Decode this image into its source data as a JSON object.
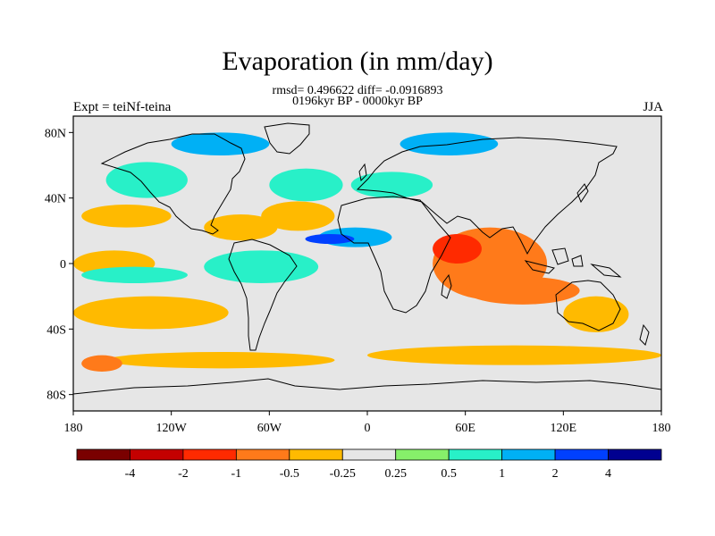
{
  "title": "Evaporation (in mm/day)",
  "stats": "rmsd= 0.496622 diff= -0.0916893",
  "period": "0196kyr BP - 0000kyr BP",
  "left_label": "Expt = teiNf-teina",
  "right_label": "JJA",
  "lon_ticks": [
    {
      "value": -180,
      "label": "180"
    },
    {
      "value": -120,
      "label": "120W"
    },
    {
      "value": -60,
      "label": "60W"
    },
    {
      "value": 0,
      "label": "0"
    },
    {
      "value": 60,
      "label": "60E"
    },
    {
      "value": 120,
      "label": "120E"
    },
    {
      "value": 180,
      "label": "180"
    }
  ],
  "lat_ticks": [
    {
      "value": 80,
      "label": "80N"
    },
    {
      "value": 40,
      "label": "40N"
    },
    {
      "value": 0,
      "label": "0"
    },
    {
      "value": -40,
      "label": "40S"
    },
    {
      "value": -80,
      "label": "80S"
    }
  ],
  "colorbar": {
    "colors": [
      "#7a0000",
      "#c40000",
      "#ff2a00",
      "#ff7a1a",
      "#ffba00",
      "#e6e6e6",
      "#86f06a",
      "#28f0c8",
      "#00b0f5",
      "#0040ff",
      "#000090"
    ],
    "labels": [
      "-4",
      "-2",
      "-1",
      "-0.5",
      "-0.25",
      "0.25",
      "0.5",
      "1",
      "2",
      "4"
    ]
  },
  "chart_data": {
    "type": "heatmap",
    "title": "Evaporation (in mm/day)",
    "variable": "Evaporation",
    "units": "mm/day",
    "season": "JJA",
    "experiment": "teiNf-teina",
    "rmsd": 0.496622,
    "diff": -0.0916893,
    "lon_range": [
      -180,
      180
    ],
    "lat_range": [
      -90,
      90
    ],
    "contour_levels": [
      -4,
      -2,
      -1,
      -0.5,
      -0.25,
      0.25,
      0.5,
      1,
      2,
      4
    ],
    "regions": [
      {
        "lon": [
          -175,
          -120
        ],
        "lat": [
          22,
          36
        ],
        "level": -0.5
      },
      {
        "lon": [
          -100,
          -55
        ],
        "lat": [
          14,
          30
        ],
        "level": -0.5
      },
      {
        "lon": [
          -65,
          -20
        ],
        "lat": [
          20,
          38
        ],
        "level": -0.5
      },
      {
        "lon": [
          -60,
          -15
        ],
        "lat": [
          38,
          58
        ],
        "level": 0.5
      },
      {
        "lon": [
          -10,
          40
        ],
        "lat": [
          40,
          56
        ],
        "level": 0.5
      },
      {
        "lon": [
          -160,
          -110
        ],
        "lat": [
          40,
          62
        ],
        "level": 0.5
      },
      {
        "lon": [
          -120,
          -60
        ],
        "lat": [
          66,
          80
        ],
        "level": 1
      },
      {
        "lon": [
          20,
          80
        ],
        "lat": [
          66,
          80
        ],
        "level": 1
      },
      {
        "lon": [
          -30,
          15
        ],
        "lat": [
          10,
          22
        ],
        "level": 1
      },
      {
        "lon": [
          -38,
          -8
        ],
        "lat": [
          12,
          18
        ],
        "level": 2
      },
      {
        "lon": [
          40,
          110
        ],
        "lat": [
          -22,
          22
        ],
        "level": -1
      },
      {
        "lon": [
          40,
          70
        ],
        "lat": [
          0,
          18
        ],
        "level": -2
      },
      {
        "lon": [
          60,
          130
        ],
        "lat": [
          -25,
          -8
        ],
        "level": -1
      },
      {
        "lon": [
          120,
          160
        ],
        "lat": [
          -42,
          -20
        ],
        "level": -0.5
      },
      {
        "lon": [
          -180,
          -130
        ],
        "lat": [
          -8,
          8
        ],
        "level": -0.5
      },
      {
        "lon": [
          -180,
          -85
        ],
        "lat": [
          -40,
          -20
        ],
        "level": -0.5
      },
      {
        "lon": [
          -175,
          -110
        ],
        "lat": [
          -12,
          -2
        ],
        "level": 0.5
      },
      {
        "lon": [
          -100,
          -30
        ],
        "lat": [
          -12,
          8
        ],
        "level": 0.5
      },
      {
        "lon": [
          -160,
          -20
        ],
        "lat": [
          -64,
          -54
        ],
        "level": -0.5
      },
      {
        "lon": [
          0,
          180
        ],
        "lat": [
          -62,
          -50
        ],
        "level": -0.5
      },
      {
        "lon": [
          -175,
          -150
        ],
        "lat": [
          -66,
          -56
        ],
        "level": -1
      }
    ]
  }
}
